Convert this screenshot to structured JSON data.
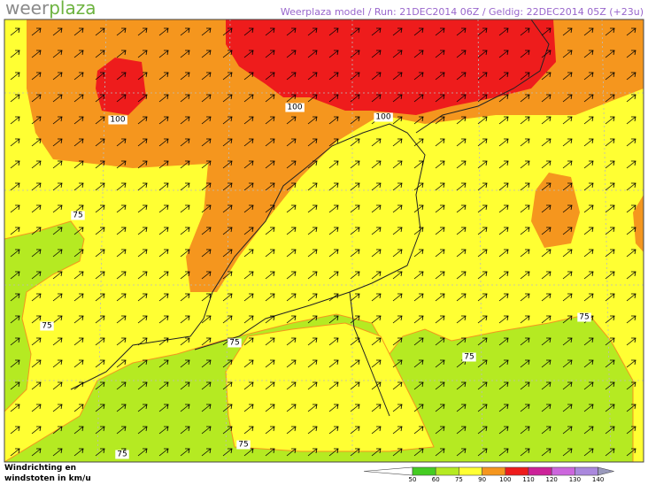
{
  "header": {
    "logo": [
      "weer",
      "plaza"
    ],
    "title": "Weerplaza model / Run: 21DEC2014 06Z / Geldig: 22DEC2014 05Z (+23u)"
  },
  "contour_labels": [
    "100",
    "100",
    "100",
    "75",
    "75",
    "75",
    "75",
    "75",
    "75",
    "75"
  ],
  "legend": {
    "title": [
      "Windrichting en",
      "windstoten in km/u"
    ],
    "scale": [
      {
        "value": 50,
        "color": "#44cc22"
      },
      {
        "value": 60,
        "color": "#b5ea22"
      },
      {
        "value": 75,
        "color": "#ffff33"
      },
      {
        "value": 90,
        "color": "#f5961e"
      },
      {
        "value": 100,
        "color": "#ee1c1c"
      },
      {
        "value": 110,
        "color": "#cc2299"
      },
      {
        "value": 120,
        "color": "#cc66dd"
      },
      {
        "value": 130,
        "color": "#aa88dd"
      },
      {
        "value": 140,
        "color": "#9999bb"
      }
    ]
  }
}
